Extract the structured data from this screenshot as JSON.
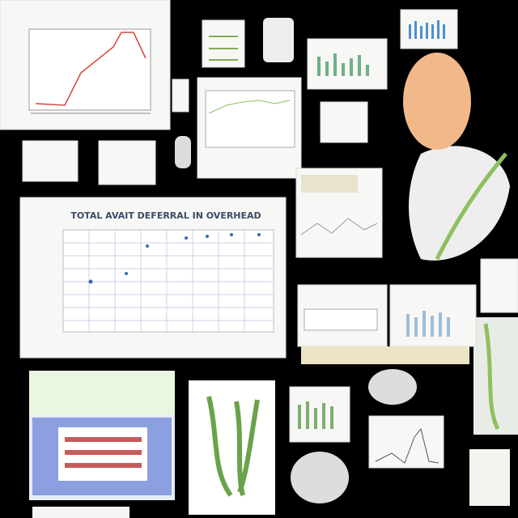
{
  "main_panel": {
    "title": "TOTAL AVAIT DEFERRAL IN OVERHEAD"
  }
}
